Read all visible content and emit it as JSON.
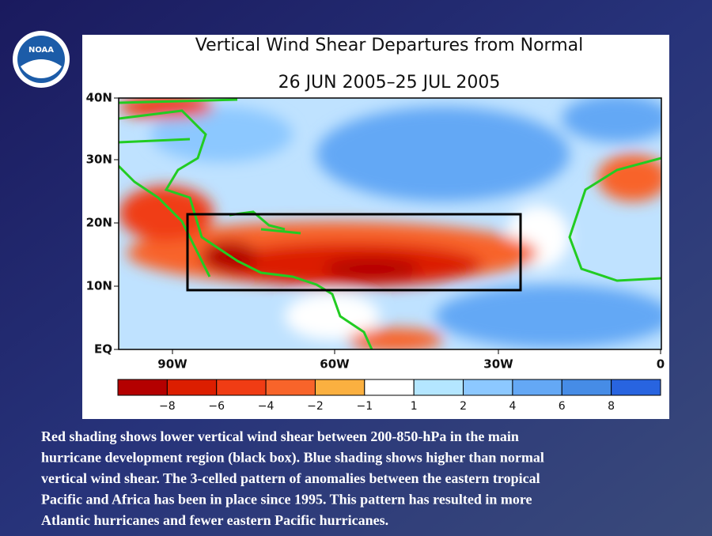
{
  "logo": "NOAA",
  "map": {
    "title": "Vertical Wind Shear Departures from Normal",
    "subtitle": "26 JUN 2005–25 JUL 2005",
    "lat_labels": [
      "40N",
      "30N",
      "20N",
      "10N",
      "EQ"
    ],
    "lon_labels": [
      "90W",
      "60W",
      "30W",
      "0"
    ],
    "colorbar": {
      "colors": [
        "#b40000",
        "#dc1e00",
        "#f03c14",
        "#f8642a",
        "#fbb040",
        "#ffffff",
        "#b4e6ff",
        "#8cc8ff",
        "#64a8f5",
        "#468ce6",
        "#2864e0"
      ],
      "labels": [
        "−8",
        "−6",
        "−4",
        "−2",
        "−1",
        "1",
        "2",
        "4",
        "6",
        "8"
      ]
    }
  },
  "caption": [
    "Red shading shows lower vertical wind shear between 200-850-hPa in the main",
    "hurricane development region (black box). Blue shading shows higher than normal",
    "vertical wind shear. The 3-celled pattern of anomalies between the eastern tropical",
    "Pacific and Africa has been in place since 1995. This pattern has resulted in more",
    "Atlantic hurricanes and fewer eastern Pacific hurricanes."
  ]
}
